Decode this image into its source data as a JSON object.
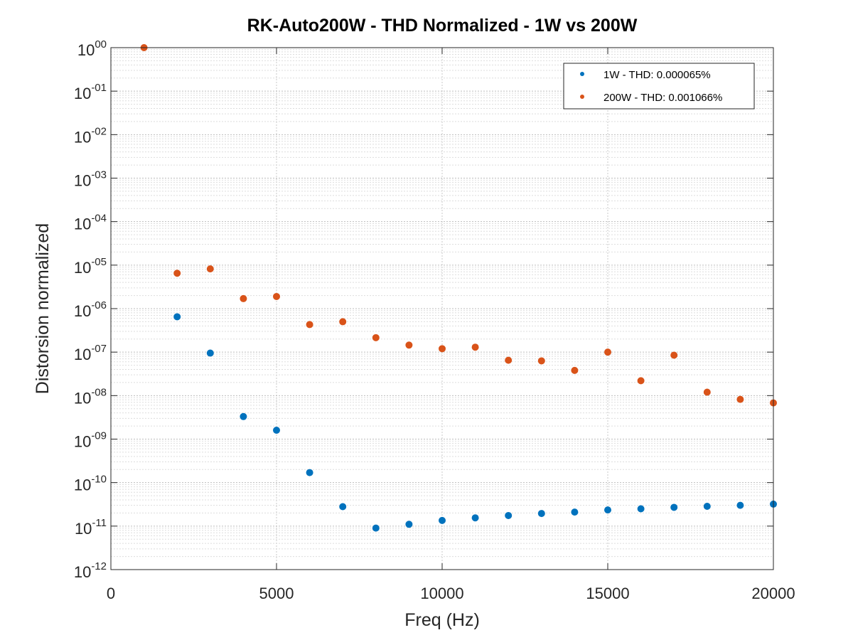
{
  "chart_data": {
    "type": "scatter",
    "title": "RK-Auto200W - THD Normalized - 1W vs 200W",
    "xlabel": "Freq (Hz)",
    "ylabel": "Distorsion normalized",
    "xlim": [
      0,
      20000
    ],
    "ylim": [
      1e-12,
      1
    ],
    "yscale": "log",
    "grid": true,
    "legend_position": "top-right",
    "x_ticks": [
      "0",
      "5000",
      "10000",
      "15000",
      "20000"
    ],
    "y_ticks": [
      {
        "base": "10",
        "exp": "00"
      },
      {
        "base": "10",
        "exp": "-01"
      },
      {
        "base": "10",
        "exp": "-02"
      },
      {
        "base": "10",
        "exp": "-03"
      },
      {
        "base": "10",
        "exp": "-04"
      },
      {
        "base": "10",
        "exp": "-05"
      },
      {
        "base": "10",
        "exp": "-06"
      },
      {
        "base": "10",
        "exp": "-07"
      },
      {
        "base": "10",
        "exp": "-08"
      },
      {
        "base": "10",
        "exp": "-09"
      },
      {
        "base": "10",
        "exp": "-10"
      },
      {
        "base": "10",
        "exp": "-11"
      },
      {
        "base": "10",
        "exp": "-12"
      }
    ],
    "series": [
      {
        "name": "1W - THD: 0.000065%",
        "color": "#0072BD",
        "x": [
          2000,
          3000,
          4000,
          5000,
          6000,
          7000,
          8000,
          9000,
          10000,
          11000,
          12000,
          13000,
          14000,
          15000,
          16000,
          17000,
          18000,
          19000,
          20000
        ],
        "y": [
          6.5e-07,
          9.5e-08,
          3.3e-09,
          1.6e-09,
          1.7e-10,
          2.8e-11,
          9e-12,
          1.1e-11,
          1.35e-11,
          1.55e-11,
          1.75e-11,
          1.95e-11,
          2.1e-11,
          2.35e-11,
          2.5e-11,
          2.7e-11,
          2.85e-11,
          3e-11,
          3.2e-11
        ]
      },
      {
        "name": "200W - THD: 0.001066%",
        "color": "#D95319",
        "x": [
          1000,
          2000,
          3000,
          4000,
          5000,
          6000,
          7000,
          8000,
          9000,
          10000,
          11000,
          12000,
          13000,
          14000,
          15000,
          16000,
          17000,
          18000,
          19000,
          20000
        ],
        "y": [
          1.0,
          6.5e-06,
          8.2e-06,
          1.7e-06,
          1.9e-06,
          4.3e-07,
          5e-07,
          2.15e-07,
          1.45e-07,
          1.2e-07,
          1.3e-07,
          6.5e-08,
          6.3e-08,
          3.8e-08,
          1e-07,
          2.2e-08,
          8.5e-08,
          1.2e-08,
          8.2e-09,
          6.8e-09
        ]
      }
    ]
  }
}
